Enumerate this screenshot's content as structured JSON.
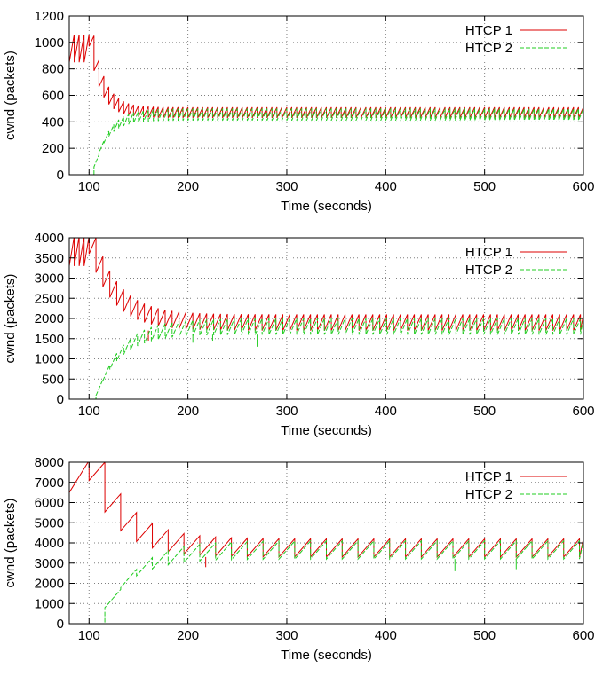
{
  "colors": {
    "htcp1": "#dd0000",
    "htcp2": "#22cc22",
    "grid": "#7f7f7f",
    "axis": "#000000"
  },
  "chart_data": [
    {
      "type": "line",
      "title": "",
      "xlabel": "Time (seconds)",
      "ylabel": "cwnd (packets)",
      "xlim": [
        80,
        600
      ],
      "ylim": [
        0,
        1200
      ],
      "xticks": [
        100,
        200,
        300,
        400,
        500,
        600
      ],
      "yticks": [
        0,
        200,
        400,
        600,
        800,
        1000,
        1200
      ],
      "grid": true,
      "legend_position": "top-right",
      "series": [
        {
          "name": "HTCP 1",
          "style": "solid",
          "color": "#dd0000",
          "start": 80,
          "start_level": 1050,
          "pre_min": 850,
          "pre_max": 1050,
          "pre_period": 5,
          "join": 100,
          "settle_tau": 12,
          "level_min": 430,
          "level_max": 510,
          "period": 5,
          "dips": []
        },
        {
          "name": "HTCP 2",
          "style": "dashed",
          "color": "#22cc22",
          "start": 100,
          "start_level": 0,
          "join": 100,
          "settle_tau": 14,
          "level_min": 410,
          "level_max": 500,
          "period": 5,
          "dips": []
        }
      ]
    },
    {
      "type": "line",
      "title": "",
      "xlabel": "Time (seconds)",
      "ylabel": "cwnd (packets)",
      "xlim": [
        80,
        600
      ],
      "ylim": [
        0,
        4000
      ],
      "xticks": [
        100,
        200,
        300,
        400,
        500,
        600
      ],
      "yticks": [
        0,
        500,
        1000,
        1500,
        2000,
        2500,
        3000,
        3500,
        4000
      ],
      "grid": true,
      "legend_position": "top-right",
      "series": [
        {
          "name": "HTCP 1",
          "style": "solid",
          "color": "#dd0000",
          "start": 80,
          "start_level": 4000,
          "pre_min": 3300,
          "pre_max": 4000,
          "pre_period": 5,
          "join": 100,
          "settle_tau": 25,
          "level_min": 1700,
          "level_max": 2100,
          "period": 7,
          "dips": [
            [
              160,
              1450
            ]
          ]
        },
        {
          "name": "HTCP 2",
          "style": "dashed",
          "color": "#22cc22",
          "start": 100,
          "start_level": 0,
          "join": 100,
          "settle_tau": 25,
          "level_min": 1600,
          "level_max": 2000,
          "period": 7,
          "dips": [
            [
              205,
              1400
            ],
            [
              225,
              1450
            ],
            [
              270,
              1300
            ]
          ]
        }
      ]
    },
    {
      "type": "line",
      "title": "",
      "xlabel": "Time (seconds)",
      "ylabel": "cwnd (packets)",
      "xlim": [
        80,
        600
      ],
      "ylim": [
        0,
        8000
      ],
      "xticks": [
        100,
        200,
        300,
        400,
        500,
        600
      ],
      "yticks": [
        0,
        1000,
        2000,
        3000,
        4000,
        5000,
        6000,
        7000,
        8000
      ],
      "grid": true,
      "legend_position": "top-right",
      "series": [
        {
          "name": "HTCP 1",
          "style": "solid",
          "color": "#dd0000",
          "start": 80,
          "start_level": 6500,
          "pre_min": 6500,
          "pre_max": 8000,
          "pre_period": 20,
          "join": 100,
          "settle_tau": 30,
          "level_min": 3300,
          "level_max": 4200,
          "period": 16,
          "dips": [
            [
              218,
              2800
            ]
          ]
        },
        {
          "name": "HTCP 2",
          "style": "dashed",
          "color": "#22cc22",
          "start": 100,
          "start_level": 0,
          "join": 100,
          "settle_tau": 30,
          "level_min": 3200,
          "level_max": 4100,
          "period": 16,
          "dips": [
            [
              470,
              2600
            ],
            [
              532,
              2700
            ]
          ]
        }
      ]
    }
  ]
}
